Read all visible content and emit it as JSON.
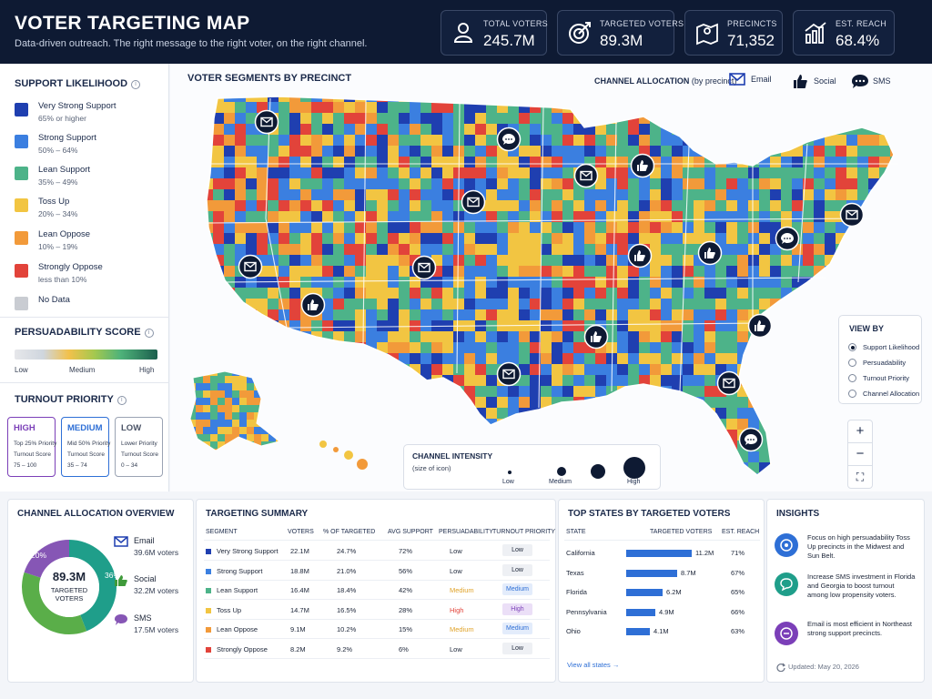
{
  "header": {
    "title": "VOTER TARGETING MAP",
    "subtitle": "Data-driven outreach. The right message to the right voter, on the right channel.",
    "kpis": [
      {
        "label": "TOTAL VOTERS",
        "value": "245.7M",
        "icon": "person-icon"
      },
      {
        "label": "TARGETED VOTERS",
        "value": "89.3M",
        "icon": "target-icon"
      },
      {
        "label": "PRECINCTS",
        "value": "71,352",
        "icon": "map-pin-icon"
      },
      {
        "label": "EST. REACH",
        "value": "68.4%",
        "icon": "growth-chart-icon"
      }
    ]
  },
  "support": {
    "title": "SUPPORT LIKELIHOOD",
    "items": [
      {
        "name": "Very Strong Support",
        "range": "65% or higher",
        "color": "#1f3fb0"
      },
      {
        "name": "Strong Support",
        "range": "50% – 64%",
        "color": "#3b7fe0"
      },
      {
        "name": "Lean Support",
        "range": "35% – 49%",
        "color": "#4db389"
      },
      {
        "name": "Toss Up",
        "range": "20% – 34%",
        "color": "#f2c542"
      },
      {
        "name": "Lean Oppose",
        "range": "10% – 19%",
        "color": "#f29a3a"
      },
      {
        "name": "Strongly Oppose",
        "range": "less than 10%",
        "color": "#e2433a"
      },
      {
        "name": "No Data",
        "range": "",
        "color": "#c9ccd2"
      }
    ]
  },
  "persuadability": {
    "title": "PERSUADABILITY SCORE",
    "low": "Low",
    "medium": "Medium",
    "high": "High"
  },
  "turnout": {
    "title": "TURNOUT PRIORITY",
    "boxes": [
      {
        "label": "HIGH",
        "line1": "Top 25% Priority",
        "line2": "Turnout Score",
        "line3": "75 – 100",
        "color": "#7b3fb8"
      },
      {
        "label": "MEDIUM",
        "line1": "Mid 50% Priority",
        "line2": "Turnout Score",
        "line3": "35 – 74",
        "color": "#2e6fd6"
      },
      {
        "label": "LOW",
        "line1": "Lower Priority",
        "line2": "Turnout Score",
        "line3": "0 – 34",
        "color": "#6a7385"
      }
    ]
  },
  "map": {
    "title": "VOTER SEGMENTS BY PRECINCT",
    "channel_alloc_label": "CHANNEL ALLOCATION",
    "channel_alloc_sub": "(by precinct)",
    "legend": {
      "email": "Email",
      "social": "Social",
      "sms": "SMS"
    },
    "view_by": {
      "title": "VIEW BY",
      "options": [
        "Support Likelihood",
        "Persuadability",
        "Turnout Priority",
        "Channel Allocation"
      ],
      "selected": "Support Likelihood"
    },
    "zoom_in": "+",
    "zoom_out": "−",
    "fullscreen": "⛶",
    "intensity": {
      "title": "CHANNEL INTENSITY",
      "subtitle": "(size of icon)",
      "low": "Low",
      "medium": "Medium",
      "high": "High"
    }
  },
  "channel_overview": {
    "title": "CHANNEL ALLOCATION OVERVIEW",
    "center_value": "89.3M",
    "center_label_1": "TARGETED",
    "center_label_2": "VOTERS",
    "slices": [
      {
        "name": "Email",
        "value": "39.6M voters",
        "pct_label": "44%",
        "pct": 44,
        "color": "#1f9e8a"
      },
      {
        "name": "Social",
        "value": "32.2M voters",
        "pct_label": "36%",
        "pct": 36,
        "color": "#5aae49"
      },
      {
        "name": "SMS",
        "value": "17.5M voters",
        "pct_label": "20%",
        "pct": 20,
        "color": "#8656b5"
      }
    ]
  },
  "summary": {
    "title": "TARGETING SUMMARY",
    "headers": [
      "SEGMENT",
      "VOTERS",
      "% OF TARGETED",
      "AVG SUPPORT",
      "PERSUADABILITY",
      "TURNOUT PRIORITY"
    ],
    "rows": [
      {
        "segment": "Very Strong Support",
        "voters": "22.1M",
        "pct": "24.7%",
        "avg": "72%",
        "pers": "Low",
        "turnout": "Low",
        "color": "#1f3fb0"
      },
      {
        "segment": "Strong Support",
        "voters": "18.8M",
        "pct": "21.0%",
        "avg": "56%",
        "pers": "Low",
        "turnout": "Low",
        "color": "#3b7fe0"
      },
      {
        "segment": "Lean Support",
        "voters": "16.4M",
        "pct": "18.4%",
        "avg": "42%",
        "pers": "Medium",
        "turnout": "Medium",
        "color": "#4db389"
      },
      {
        "segment": "Toss Up",
        "voters": "14.7M",
        "pct": "16.5%",
        "avg": "28%",
        "pers": "High",
        "turnout": "High",
        "color": "#f2c542"
      },
      {
        "segment": "Lean Oppose",
        "voters": "9.1M",
        "pct": "10.2%",
        "avg": "15%",
        "pers": "Medium",
        "turnout": "Medium",
        "color": "#f29a3a"
      },
      {
        "segment": "Strongly Oppose",
        "voters": "8.2M",
        "pct": "9.2%",
        "avg": "6%",
        "pers": "Low",
        "turnout": "Low",
        "color": "#e2433a"
      }
    ]
  },
  "top_states": {
    "title": "TOP STATES BY TARGETED VOTERS",
    "headers": [
      "STATE",
      "TARGETED VOTERS",
      "EST. REACH"
    ],
    "rows": [
      {
        "state": "California",
        "voters": "11.2M",
        "voters_num": 11.2,
        "reach": "71%"
      },
      {
        "state": "Texas",
        "voters": "8.7M",
        "voters_num": 8.7,
        "reach": "67%"
      },
      {
        "state": "Florida",
        "voters": "6.2M",
        "voters_num": 6.2,
        "reach": "65%"
      },
      {
        "state": "Pennsylvania",
        "voters": "4.9M",
        "voters_num": 4.9,
        "reach": "66%"
      },
      {
        "state": "Ohio",
        "voters": "4.1M",
        "voters_num": 4.1,
        "reach": "63%"
      }
    ],
    "link": "View all states →"
  },
  "insights": {
    "title": "INSIGHTS",
    "items": [
      {
        "text": "Focus on high persuadability Toss Up precincts in the Midwest and Sun Belt.",
        "color": "#2e6fd6"
      },
      {
        "text": "Increase SMS investment in Florida and Georgia to boost turnout among low propensity voters.",
        "color": "#1f9e8a"
      },
      {
        "text": "Email is most efficient in Northeast strong support precincts.",
        "color": "#7b3fb8"
      }
    ],
    "updated": "Updated: May 20, 2026"
  }
}
